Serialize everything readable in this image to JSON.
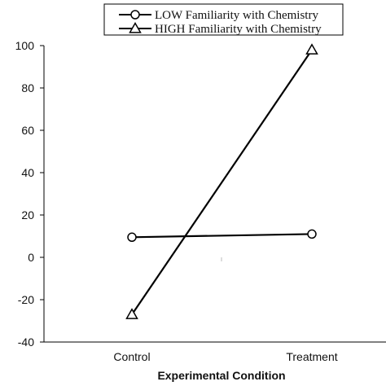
{
  "chart_data": {
    "type": "line",
    "title": "",
    "xlabel": "Experimental Condition",
    "ylabel": "",
    "categories": [
      "Control",
      "Treatment"
    ],
    "ylim": [
      -40,
      100
    ],
    "yticks": [
      -40,
      -20,
      0,
      20,
      40,
      60,
      80,
      100
    ],
    "grid": false,
    "legend_position": "top",
    "series": [
      {
        "name": "LOW Familiarity with Chemistry",
        "marker": "circle",
        "color": "#000000",
        "values": [
          9.5,
          11
        ]
      },
      {
        "name": "HIGH Familiarity with Chemistry",
        "marker": "triangle",
        "color": "#000000",
        "values": [
          -27,
          98
        ]
      }
    ]
  }
}
